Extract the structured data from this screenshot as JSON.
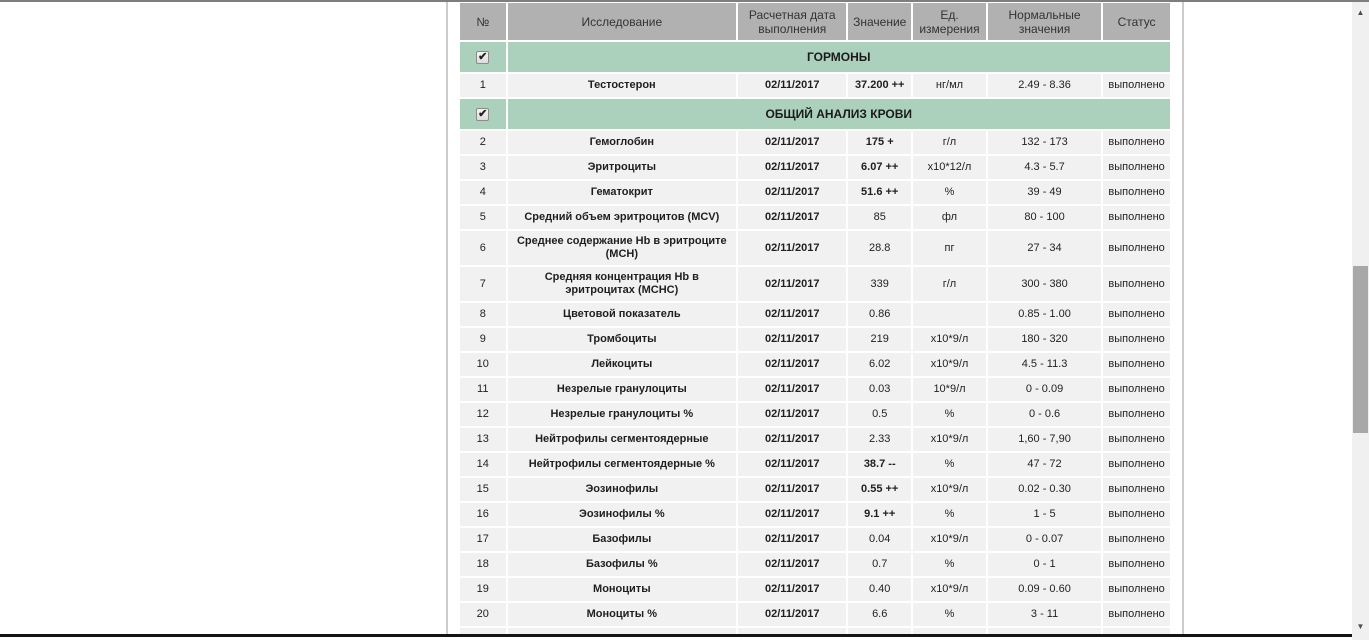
{
  "colors": {
    "header_bg": "#b1b1b1",
    "section_bg": "#abd1bd",
    "row_bg": "#f1f1f1",
    "frame_line": "#cccccc",
    "bottom_line": "#141414"
  },
  "scrollbar": {
    "up_icon": "▲",
    "down_icon": "▼"
  },
  "checkbox_icon": "✔",
  "table": {
    "columns": [
      "№",
      "Исследование",
      "Расчетная дата выполнения",
      "Значение",
      "Ед. измерения",
      "Нормальные значения",
      "Статус"
    ],
    "sections": [
      {
        "title": "ГОРМОНЫ",
        "checked": true,
        "rows": [
          {
            "num": "1",
            "name": "Тестостерон",
            "date": "02/11/2017",
            "value": "37.200 ++",
            "flag": true,
            "unit": "нг/мл",
            "normal": "2.49 - 8.36",
            "status": "выполнено"
          }
        ]
      },
      {
        "title": "ОБЩИЙ АНАЛИЗ КРОВИ",
        "checked": true,
        "rows": [
          {
            "num": "2",
            "name": "Гемоглобин",
            "date": "02/11/2017",
            "value": "175 +",
            "flag": true,
            "unit": "г/л",
            "normal": "132 - 173",
            "status": "выполнено"
          },
          {
            "num": "3",
            "name": "Эритроциты",
            "date": "02/11/2017",
            "value": "6.07 ++",
            "flag": true,
            "unit": "х10*12/л",
            "normal": "4.3 - 5.7",
            "status": "выполнено"
          },
          {
            "num": "4",
            "name": "Гематокрит",
            "date": "02/11/2017",
            "value": "51.6 ++",
            "flag": true,
            "unit": "%",
            "normal": "39 - 49",
            "status": "выполнено"
          },
          {
            "num": "5",
            "name": "Средний объем эритроцитов (MCV)",
            "date": "02/11/2017",
            "value": "85",
            "flag": false,
            "unit": "фл",
            "normal": "80 - 100",
            "status": "выполнено"
          },
          {
            "num": "6",
            "name": "Среднее содержание Hb в эритроците (MCH)",
            "date": "02/11/2017",
            "value": "28.8",
            "flag": false,
            "unit": "пг",
            "normal": "27 - 34",
            "status": "выполнено"
          },
          {
            "num": "7",
            "name": "Средняя концентрация Hb в эритроцитах (MCHC)",
            "date": "02/11/2017",
            "value": "339",
            "flag": false,
            "unit": "г/л",
            "normal": "300 - 380",
            "status": "выполнено"
          },
          {
            "num": "8",
            "name": "Цветовой показатель",
            "date": "02/11/2017",
            "value": "0.86",
            "flag": false,
            "unit": "",
            "normal": "0.85 - 1.00",
            "status": "выполнено"
          },
          {
            "num": "9",
            "name": "Тромбоциты",
            "date": "02/11/2017",
            "value": "219",
            "flag": false,
            "unit": "х10*9/л",
            "normal": "180 - 320",
            "status": "выполнено"
          },
          {
            "num": "10",
            "name": "Лейкоциты",
            "date": "02/11/2017",
            "value": "6.02",
            "flag": false,
            "unit": "х10*9/л",
            "normal": "4.5 - 11.3",
            "status": "выполнено"
          },
          {
            "num": "11",
            "name": "Незрелые гранулоциты",
            "date": "02/11/2017",
            "value": "0.03",
            "flag": false,
            "unit": "10*9/л",
            "normal": "0 - 0.09",
            "status": "выполнено"
          },
          {
            "num": "12",
            "name": "Незрелые гранулоциты %",
            "date": "02/11/2017",
            "value": "0.5",
            "flag": false,
            "unit": "%",
            "normal": "0 - 0.6",
            "status": "выполнено"
          },
          {
            "num": "13",
            "name": "Нейтрофилы сегментоядерные",
            "date": "02/11/2017",
            "value": "2.33",
            "flag": false,
            "unit": "х10*9/л",
            "normal": "1,60 - 7,90",
            "status": "выполнено"
          },
          {
            "num": "14",
            "name": "Нейтрофилы сегментоядерные %",
            "date": "02/11/2017",
            "value": "38.7 --",
            "flag": true,
            "unit": "%",
            "normal": "47 - 72",
            "status": "выполнено"
          },
          {
            "num": "15",
            "name": "Эозинофилы",
            "date": "02/11/2017",
            "value": "0.55 ++",
            "flag": true,
            "unit": "х10*9/л",
            "normal": "0.02 - 0.30",
            "status": "выполнено"
          },
          {
            "num": "16",
            "name": "Эозинофилы %",
            "date": "02/11/2017",
            "value": "9.1 ++",
            "flag": true,
            "unit": "%",
            "normal": "1 - 5",
            "status": "выполнено"
          },
          {
            "num": "17",
            "name": "Базофилы",
            "date": "02/11/2017",
            "value": "0.04",
            "flag": false,
            "unit": "х10*9/л",
            "normal": "0 - 0.07",
            "status": "выполнено"
          },
          {
            "num": "18",
            "name": "Базофилы %",
            "date": "02/11/2017",
            "value": "0.7",
            "flag": false,
            "unit": "%",
            "normal": "0 - 1",
            "status": "выполнено"
          },
          {
            "num": "19",
            "name": "Моноциты",
            "date": "02/11/2017",
            "value": "0.40",
            "flag": false,
            "unit": "х10*9/л",
            "normal": "0.09 - 0.60",
            "status": "выполнено"
          },
          {
            "num": "20",
            "name": "Моноциты %",
            "date": "02/11/2017",
            "value": "6.6",
            "flag": false,
            "unit": "%",
            "normal": "3 - 11",
            "status": "выполнено"
          }
        ]
      }
    ]
  }
}
